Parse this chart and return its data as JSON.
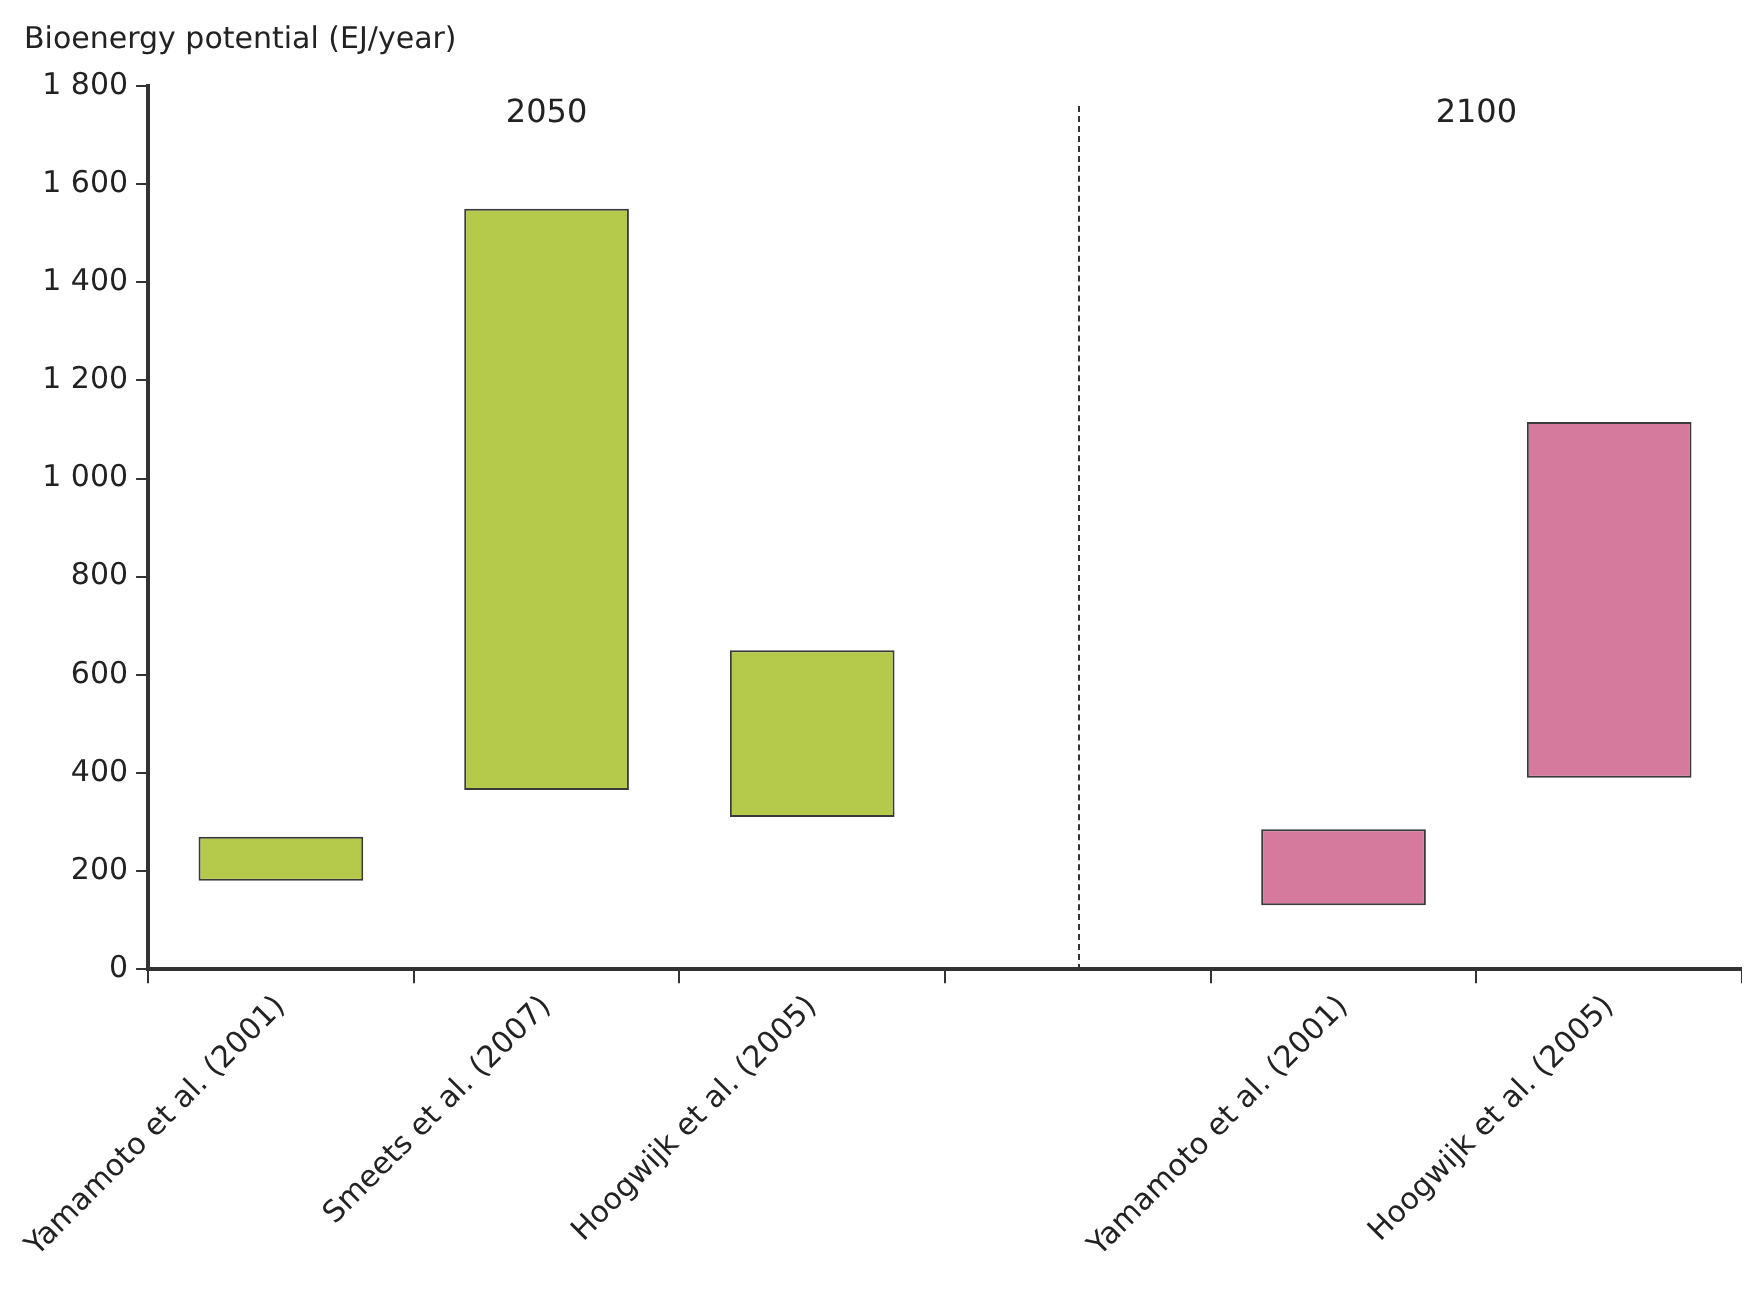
{
  "chart_data": {
    "type": "bar",
    "ylabel": "Bioenergy potential (EJ/year)",
    "categories": [
      "Yamamoto et al. (2001)",
      "Smeets et al. (2007)",
      "Hoogwijk et al. (2005)",
      null,
      "Yamamoto et al. (2001)",
      "Hoogwijk et al. (2005)"
    ],
    "values": [
      90,
      1185,
      340,
      null,
      155,
      725
    ],
    "base": [
      180,
      365,
      310,
      null,
      130,
      390
    ],
    "colors": [
      "#b5ca4a",
      "#b5ca4a",
      "#b5ca4a",
      null,
      "#d57a9d",
      "#d57a9d"
    ],
    "ylim": [
      0,
      1800
    ],
    "yticks": [
      0,
      200,
      400,
      600,
      800,
      {
        "value": 1000,
        "label": "1 000"
      },
      {
        "value": 1200,
        "label": "1 200"
      },
      {
        "value": 1400,
        "label": "1 400"
      },
      {
        "value": 1600,
        "label": "1 600"
      },
      {
        "value": 1800,
        "label": "1 800"
      }
    ],
    "annotations": [
      "2050",
      "2100"
    ],
    "grid": false,
    "legend": false
  }
}
